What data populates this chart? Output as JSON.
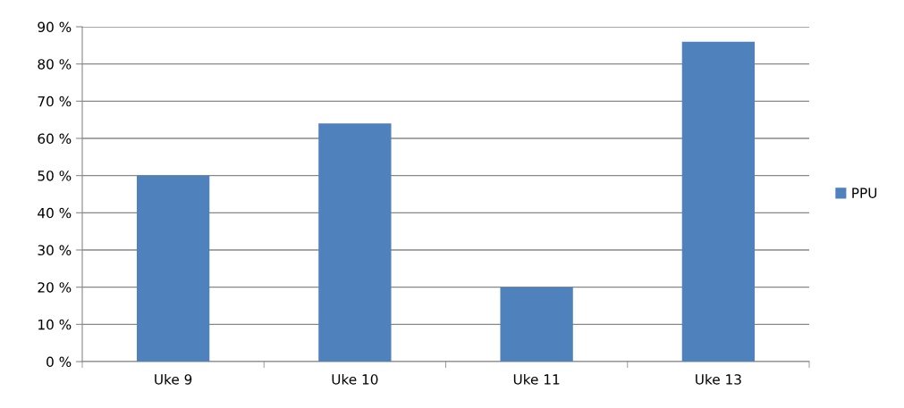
{
  "chart_data": {
    "type": "bar",
    "categories": [
      "Uke 9",
      "Uke 10",
      "Uke 11",
      "Uke 13"
    ],
    "series": [
      {
        "name": "PPU",
        "color": "#4f81bd",
        "values": [
          50,
          64,
          20,
          86
        ]
      }
    ],
    "ylim": [
      0,
      90
    ],
    "yticks": [
      {
        "value": 0,
        "label": "0 %"
      },
      {
        "value": 10,
        "label": "10 %"
      },
      {
        "value": 20,
        "label": "20 %"
      },
      {
        "value": 30,
        "label": "30 %"
      },
      {
        "value": 40,
        "label": "40 %"
      },
      {
        "value": 50,
        "label": "50 %"
      },
      {
        "value": 60,
        "label": "60 %"
      },
      {
        "value": 70,
        "label": "70 %"
      },
      {
        "value": 80,
        "label": "80 %"
      },
      {
        "value": 90,
        "label": "90 %"
      }
    ],
    "grid": "y",
    "legend": "right"
  }
}
